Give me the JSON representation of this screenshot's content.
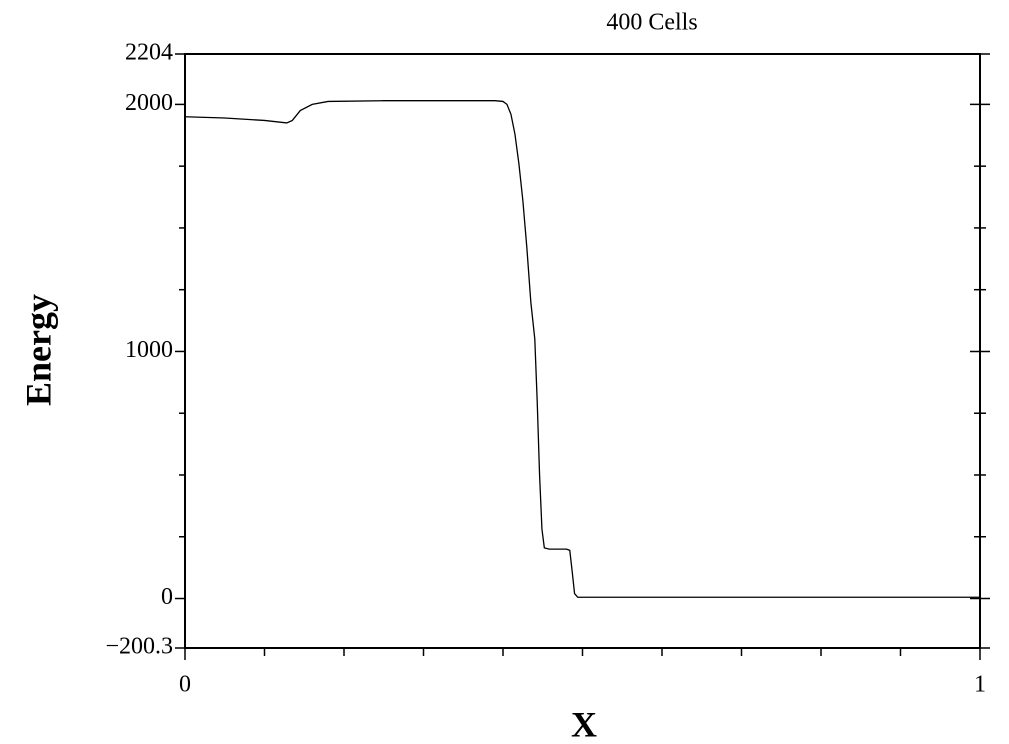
{
  "chart_data": {
    "type": "line",
    "title": "400  Cells",
    "x_label": "X",
    "y_label": "Energy",
    "x": [
      0,
      0.05,
      0.1,
      0.128,
      0.135,
      0.145,
      0.16,
      0.18,
      0.25,
      0.35,
      0.39,
      0.4,
      0.405,
      0.41,
      0.415,
      0.42,
      0.425,
      0.43,
      0.435,
      0.44,
      0.443,
      0.446,
      0.449,
      0.452,
      0.458,
      0.48,
      0.484,
      0.487,
      0.49,
      0.494,
      0.55,
      0.7,
      0.85,
      1
    ],
    "series": [
      {
        "name": "Energy",
        "color": "#000000",
        "values": [
          1950,
          1945,
          1935,
          1925,
          1935,
          1975,
          2000,
          2012,
          2015,
          2015,
          2015,
          2012,
          2000,
          1960,
          1880,
          1760,
          1610,
          1420,
          1200,
          1050,
          800,
          500,
          280,
          205,
          200,
          200,
          195,
          110,
          20,
          5,
          5,
          5,
          5,
          5
        ]
      }
    ],
    "xlim": [
      0,
      1
    ],
    "ylim": [
      -200.3,
      2204
    ],
    "xticks": [
      0,
      1
    ],
    "yticks": [
      {
        "value": -200.3,
        "label": "−200.3"
      },
      0,
      1000,
      2000,
      2204
    ],
    "xminorticks": [
      0.1,
      0.2,
      0.3,
      0.4,
      0.5,
      0.6,
      0.7,
      0.8,
      0.9
    ],
    "yminorticks": [
      250,
      500,
      750,
      1250,
      1500,
      1750
    ]
  }
}
